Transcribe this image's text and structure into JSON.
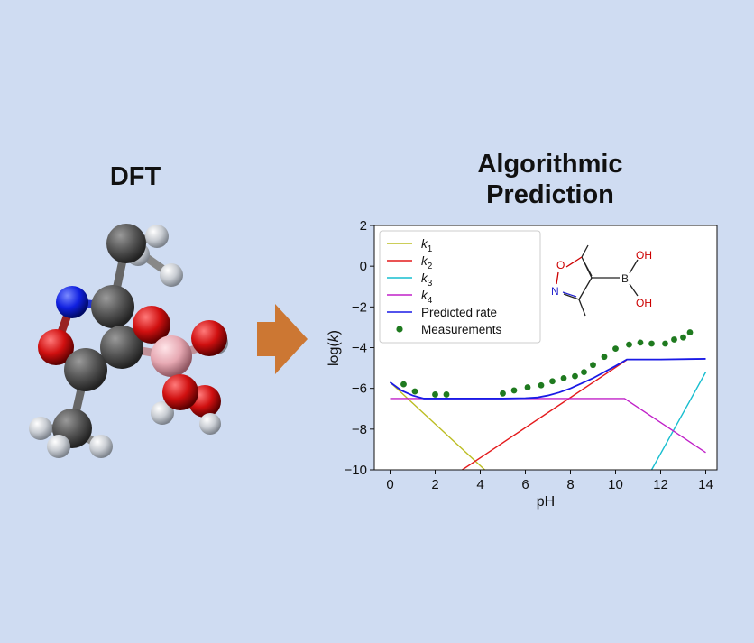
{
  "left_panel": {
    "title": "DFT"
  },
  "right_panel": {
    "title_line1": "Algorithmic",
    "title_line2": "Prediction"
  },
  "colors": {
    "background": "#cfdcf2",
    "arrow": "#cc7733",
    "k1": "#bcbd22",
    "k2": "#e41a1c",
    "k3": "#17becf",
    "k4": "#c020c8",
    "predicted": "#1a1ae6",
    "measurements": "#1f7a1f"
  },
  "chart_data": {
    "type": "line",
    "xlabel": "pH",
    "ylabel_prefix": "log(",
    "ylabel_var": "k",
    "ylabel_suffix": ")",
    "xlim": [
      -0.7,
      14.5
    ],
    "ylim": [
      -10,
      2
    ],
    "xticks": [
      "0",
      "2",
      "4",
      "6",
      "8",
      "10",
      "12",
      "14"
    ],
    "yticks": [
      "2",
      "0",
      "−2",
      "−4",
      "−6",
      "−8",
      "−10"
    ],
    "legend_position": "top-left",
    "series": [
      {
        "name": "k",
        "subscript": "1",
        "color": "#bcbd22",
        "x": [
          0,
          4.2
        ],
        "y": [
          -5.7,
          -10
        ]
      },
      {
        "name": "k",
        "subscript": "2",
        "color": "#e41a1c",
        "x": [
          3.2,
          10.5
        ],
        "y": [
          -10,
          -4.6
        ]
      },
      {
        "name": "k",
        "subscript": "3",
        "color": "#17becf",
        "x": [
          11.6,
          14
        ],
        "y": [
          -10,
          -5.2
        ]
      },
      {
        "name": "k",
        "subscript": "4",
        "color": "#c020c8",
        "x": [
          0,
          10.4,
          14
        ],
        "y": [
          -6.5,
          -6.5,
          -9.15
        ]
      },
      {
        "name": "Predicted rate",
        "color": "#1a1ae6",
        "x": [
          0,
          0.5,
          1,
          1.5,
          2,
          3,
          4,
          5,
          6,
          6.5,
          7,
          7.5,
          8,
          8.5,
          9,
          9.5,
          10,
          10.5,
          12,
          14
        ],
        "y": [
          -5.7,
          -6.1,
          -6.35,
          -6.5,
          -6.5,
          -6.5,
          -6.5,
          -6.5,
          -6.48,
          -6.45,
          -6.35,
          -6.2,
          -6.0,
          -5.75,
          -5.5,
          -5.2,
          -4.9,
          -4.58,
          -4.58,
          -4.55
        ]
      }
    ],
    "measurements": {
      "name": "Measurements",
      "x": [
        0.6,
        1.1,
        2.0,
        2.5,
        5.0,
        5.5,
        6.1,
        6.7,
        7.2,
        7.7,
        8.2,
        8.6,
        9.0,
        9.5,
        10.0,
        10.6,
        11.1,
        11.6,
        12.2,
        12.6,
        13.0,
        13.3
      ],
      "y": [
        -5.8,
        -6.15,
        -6.3,
        -6.3,
        -6.25,
        -6.1,
        -5.95,
        -5.85,
        -5.65,
        -5.5,
        -5.4,
        -5.2,
        -4.85,
        -4.45,
        -4.05,
        -3.85,
        -3.75,
        -3.8,
        -3.8,
        -3.6,
        -3.5,
        -3.25
      ]
    },
    "inset_structure": {
      "atom_O": "O",
      "atom_N": "N",
      "atom_B": "B",
      "group_OH_top": "OH",
      "group_OH_bottom": "OH"
    }
  }
}
